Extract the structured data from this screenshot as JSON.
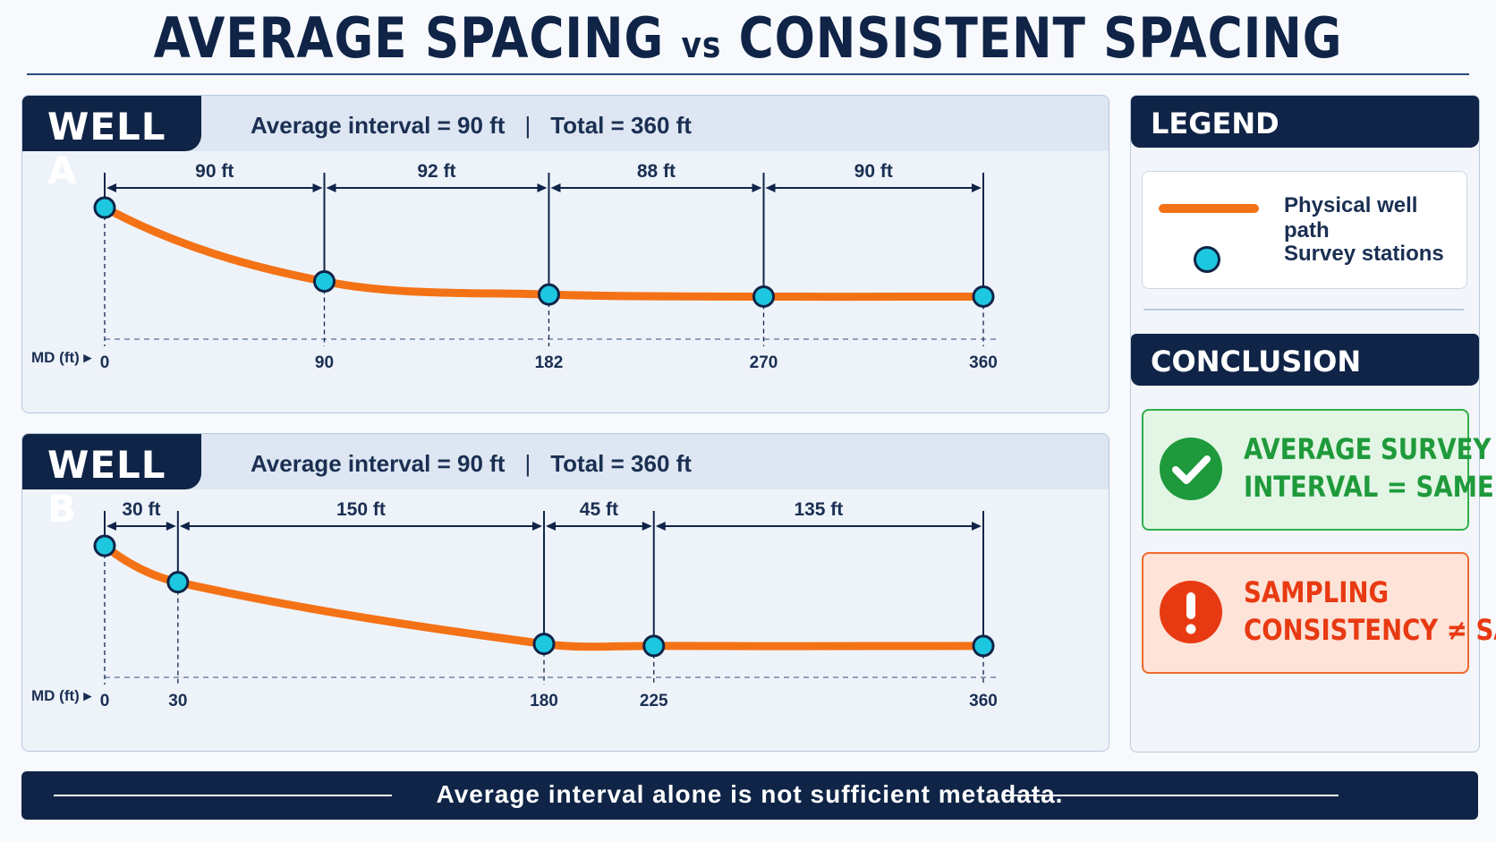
{
  "title": {
    "left": "AVERAGE SPACING",
    "vs": "vs",
    "right": "CONSISTENT SPACING"
  },
  "wells": [
    {
      "name": "WELL A",
      "average_label": "Average interval = 90 ft",
      "separator": "|",
      "total_label": "Total = 360 ft",
      "axis_label": "MD (ft) ▸",
      "stations_md": [
        0,
        90,
        182,
        270,
        360
      ],
      "tick_labels": [
        "0",
        "90",
        "182",
        "270",
        "360"
      ],
      "intervals": [
        "90 ft",
        "92 ft",
        "88 ft",
        "90 ft"
      ],
      "path_drop": [
        0,
        0.73,
        0.86,
        0.88,
        0.88
      ]
    },
    {
      "name": "WELL B",
      "average_label": "Average interval = 90 ft",
      "separator": "|",
      "total_label": "Total = 360 ft",
      "axis_label": "MD (ft) ▸",
      "stations_md": [
        0,
        30,
        180,
        225,
        360
      ],
      "tick_labels": [
        "0",
        "30",
        "180",
        "225",
        "360"
      ],
      "intervals": [
        "30 ft",
        "150 ft",
        "45 ft",
        "135 ft"
      ],
      "path_drop": [
        0,
        0.36,
        0.97,
        0.99,
        0.99
      ]
    }
  ],
  "legend": {
    "title": "LEGEND",
    "path_label": "Physical well path",
    "stations_label": "Survey stations"
  },
  "conclusion": {
    "title": "CONCLUSION",
    "ok_line1": "AVERAGE SURVEY",
    "ok_line2": "INTERVAL = SAME",
    "bad_line1": "SAMPLING",
    "bad_line2": "CONSISTENCY ≠ SAME"
  },
  "banner": "Average interval alone is not sufficient metadata.",
  "colors": {
    "navy": "#0f2447",
    "path": "#f47216",
    "station": "#1ec7e0",
    "ok": "#1f9a3b",
    "bad": "#e83a12"
  }
}
